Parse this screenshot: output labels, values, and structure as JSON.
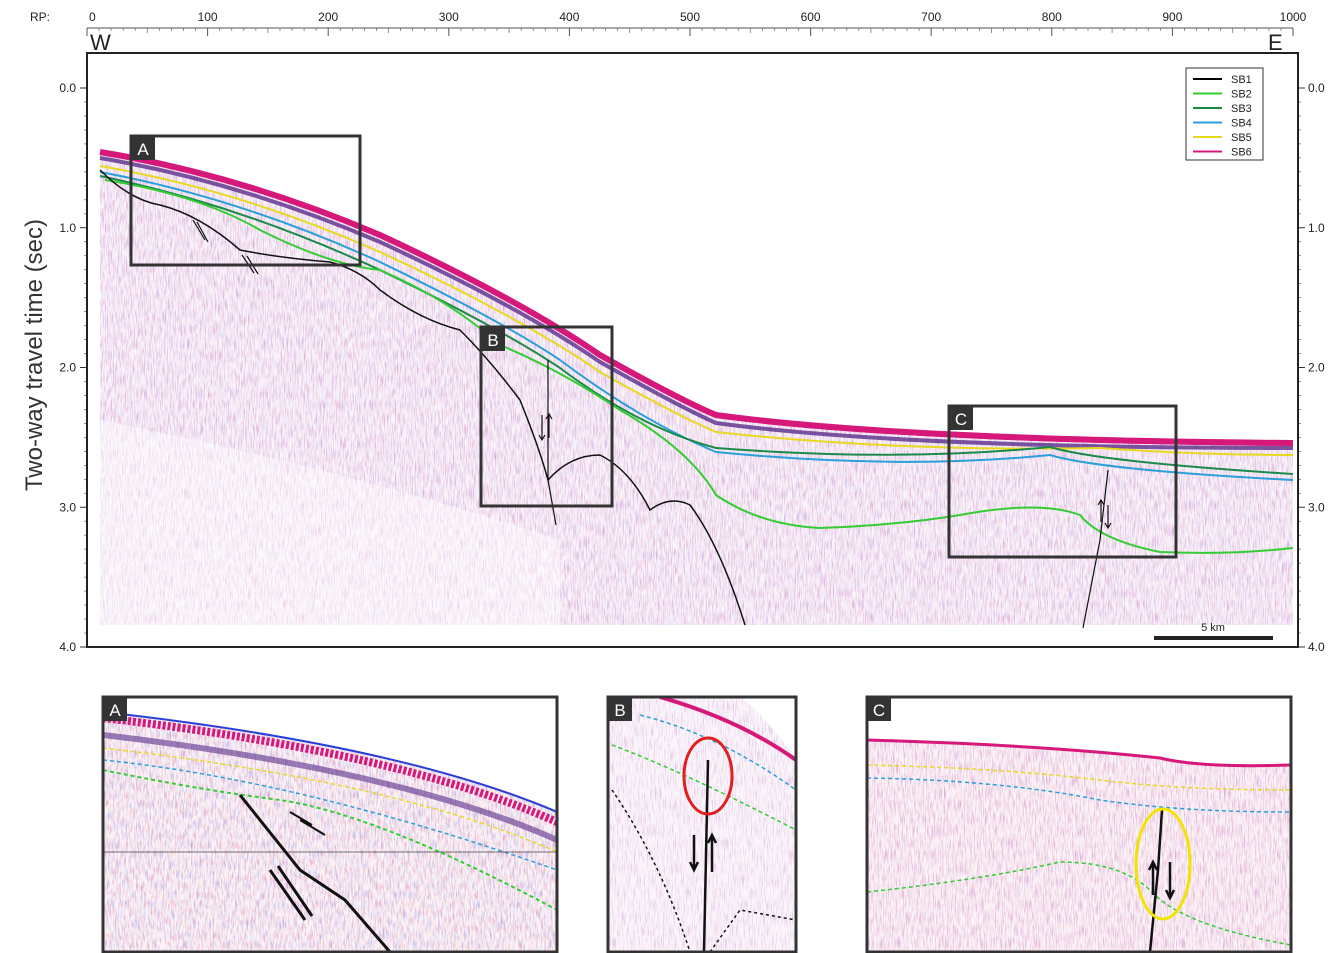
{
  "rp_axis": {
    "prefix": "RP:",
    "ticks": [
      "0",
      "100",
      "200",
      "300",
      "400",
      "500",
      "600",
      "700",
      "800",
      "900",
      "1000"
    ]
  },
  "direction": {
    "west": "W",
    "east": "E"
  },
  "y_axis": {
    "title": "Two-way travel time (sec)",
    "ticks": [
      "0.0",
      "1.0",
      "2.0",
      "3.0",
      "4.0"
    ]
  },
  "legend": {
    "items": [
      {
        "label": "SB1",
        "color": "#000000"
      },
      {
        "label": "SB2",
        "color": "#33cc33"
      },
      {
        "label": "SB3",
        "color": "#1a8a4a"
      },
      {
        "label": "SB4",
        "color": "#2a9fd8"
      },
      {
        "label": "SB5",
        "color": "#e8d820"
      },
      {
        "label": "SB6",
        "color": "#d6187a"
      }
    ]
  },
  "scale_bar": {
    "label": "5 km"
  },
  "boxes": [
    {
      "label": "A"
    },
    {
      "label": "B"
    },
    {
      "label": "C"
    }
  ],
  "insets": [
    {
      "label": "A"
    },
    {
      "label": "B"
    },
    {
      "label": "C"
    }
  ],
  "colors": {
    "frame": "#222222",
    "noise_purple": "#8a2b8a",
    "noise_red": "#d8252a",
    "noise_blue": "#2a3fd8",
    "highlight_red": "#e02020",
    "highlight_yellow": "#f2e400"
  }
}
